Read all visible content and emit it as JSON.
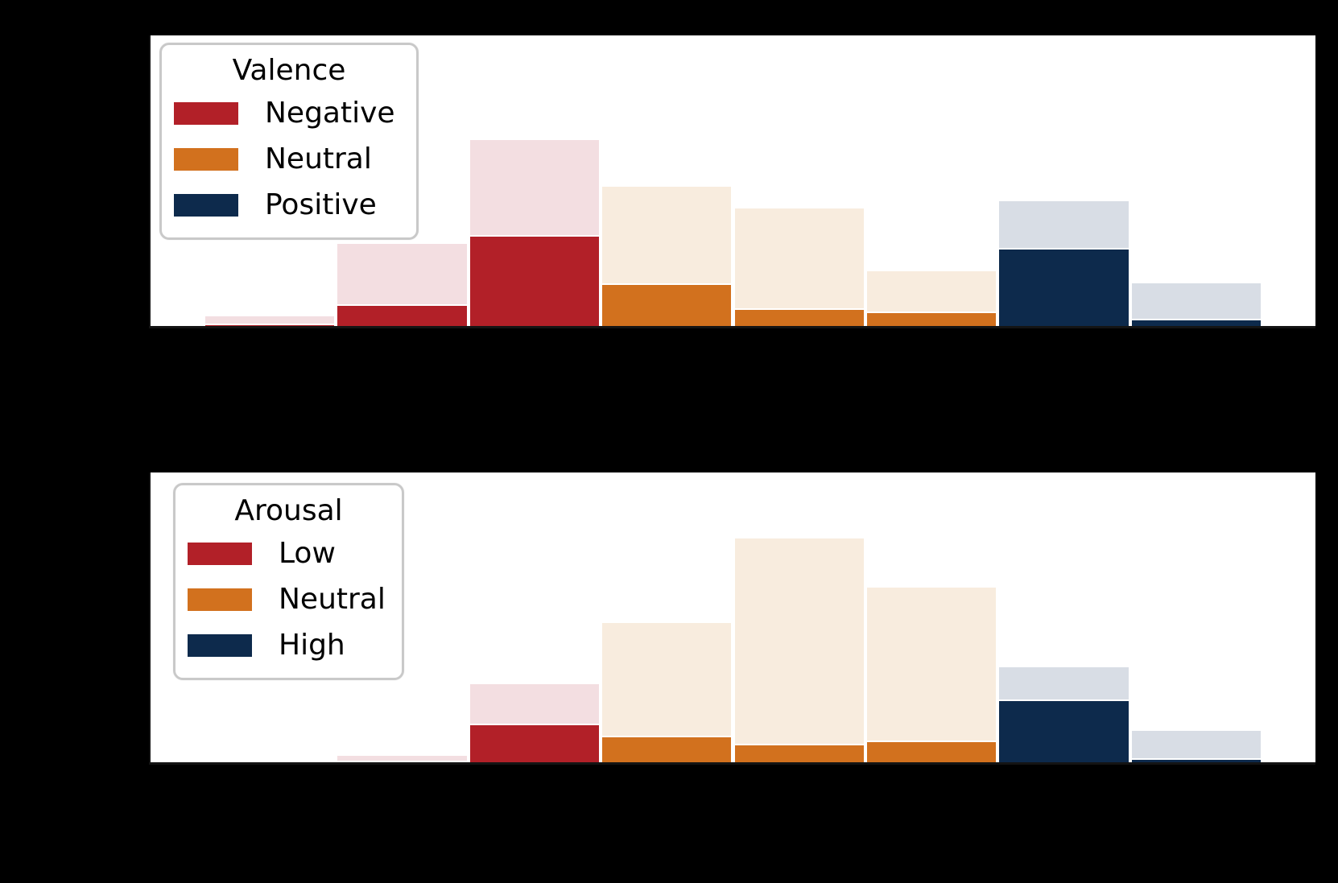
{
  "figure": {
    "background": "#000000",
    "plot_background": "#ffffff",
    "spine_color": "#141414",
    "bar_edge_color": "#ffffff",
    "legend_border_color": "#c9c9c9"
  },
  "chart_data": [
    {
      "type": "bar",
      "subtype": "histogram",
      "panel": "top",
      "legend": {
        "title": "Valence",
        "entries": [
          {
            "label": "Negative",
            "color": "#b22028"
          },
          {
            "label": "Neutral",
            "color": "#d2711e"
          },
          {
            "label": "Positive",
            "color": "#0d2a4c"
          }
        ],
        "position": "upper left"
      },
      "faded_colors": [
        "#f3dee1",
        "#f8ecde",
        "#d8dde5"
      ],
      "x_range": [
        0.6,
        9.4
      ],
      "bin_edges": [
        1,
        2,
        3,
        4,
        5,
        6,
        7,
        8,
        9
      ],
      "bin_color_group": [
        0,
        0,
        0,
        1,
        1,
        1,
        2,
        2
      ],
      "series": [
        {
          "name": "all-responses-faded",
          "heights_frac": [
            0.039,
            0.289,
            0.647,
            0.486,
            0.411,
            0.194,
            0.436,
            0.153
          ]
        },
        {
          "name": "category-solid",
          "heights_frac": [
            0.008,
            0.076,
            0.314,
            0.146,
            0.061,
            0.05,
            0.269,
            0.024
          ]
        }
      ],
      "ylim_frac": [
        0,
        1
      ],
      "grid": false,
      "axis_tick_labels_visible": false
    },
    {
      "type": "bar",
      "subtype": "histogram",
      "panel": "bottom",
      "legend": {
        "title": "Arousal",
        "entries": [
          {
            "label": "Low",
            "color": "#b22028"
          },
          {
            "label": "Neutral",
            "color": "#d2711e"
          },
          {
            "label": "High",
            "color": "#0d2a4c"
          }
        ],
        "position": "upper left"
      },
      "faded_colors": [
        "#f3dee1",
        "#f8ecde",
        "#d8dde5"
      ],
      "x_range": [
        0.6,
        9.4
      ],
      "bin_edges": [
        1,
        2,
        3,
        4,
        5,
        6,
        7,
        8,
        9
      ],
      "bin_color_group": [
        0,
        0,
        0,
        1,
        1,
        1,
        2,
        2
      ],
      "series": [
        {
          "name": "all-responses-faded",
          "heights_frac": [
            0.0,
            0.028,
            0.275,
            0.486,
            0.778,
            0.607,
            0.332,
            0.113
          ]
        },
        {
          "name": "category-solid",
          "heights_frac": [
            0.0,
            0.006,
            0.133,
            0.093,
            0.063,
            0.076,
            0.217,
            0.014
          ]
        }
      ],
      "ylim_frac": [
        0,
        1
      ],
      "grid": false,
      "axis_tick_labels_visible": false
    }
  ]
}
